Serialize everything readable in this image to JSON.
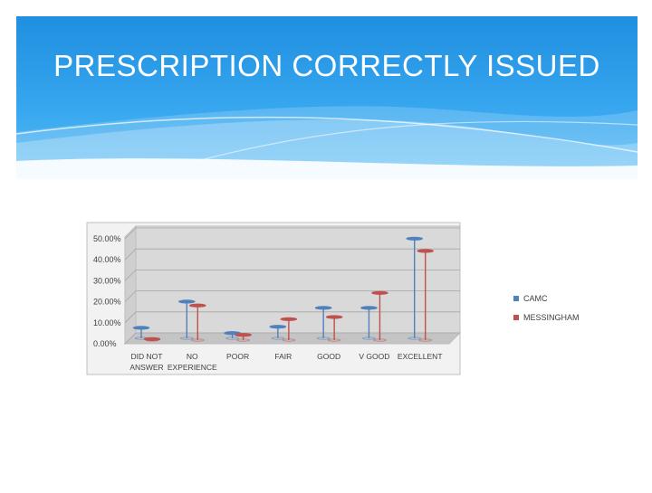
{
  "slide": {
    "title": "PRESCRIPTION CORRECTLY ISSUED"
  },
  "colors": {
    "banner_top": "#1f8fe0",
    "banner_bottom": "#5cbcf4",
    "series_1": "#4f81bd",
    "series_2": "#c0504d",
    "plot_wall": "#d9d9d9"
  },
  "chart_data": {
    "type": "bar",
    "style": "3d-clustered-cylinder",
    "categories": [
      "DID NOT ANSWER",
      "NO EXPERIENCE",
      "POOR",
      "FAIR",
      "GOOD",
      "V GOOD",
      "EXCELLENT"
    ],
    "category_labels": [
      [
        "DID NOT",
        "ANSWER"
      ],
      [
        "NO",
        "EXPERIENCE"
      ],
      [
        "POOR"
      ],
      [
        "FAIR"
      ],
      [
        "GOOD"
      ],
      [
        "V GOOD"
      ],
      [
        "EXCELLENT"
      ]
    ],
    "series": [
      {
        "name": "CAMC",
        "values": [
          5.0,
          17.5,
          2.5,
          5.5,
          14.5,
          14.5,
          47.5
        ]
      },
      {
        "name": "MESSINGHAM",
        "values": [
          0.5,
          16.5,
          2.5,
          10.0,
          11.0,
          22.5,
          42.5
        ]
      }
    ],
    "y_ticks": [
      "0.00%",
      "10.00%",
      "20.00%",
      "30.00%",
      "40.00%",
      "50.00%"
    ],
    "ylim": [
      0,
      50
    ],
    "legend_position": "right",
    "grid": true
  }
}
